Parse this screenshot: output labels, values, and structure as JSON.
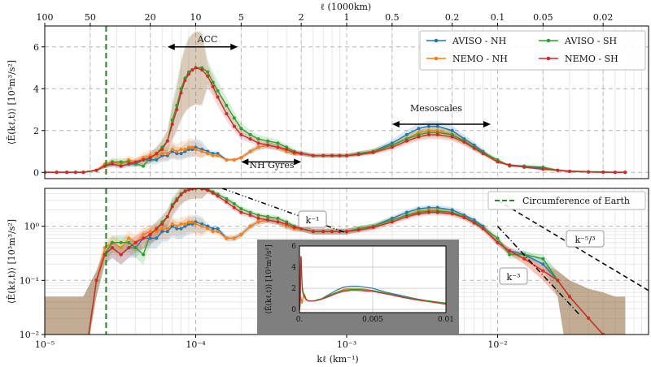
{
  "chart_data": [
    {
      "id": "top",
      "type": "line",
      "xscale": "log",
      "xlim": [
        1e-05,
        0.1
      ],
      "ylim": [
        -0.3,
        7
      ],
      "yticks": [
        0,
        2,
        4,
        6
      ],
      "ylabel": "⟨Ē(kℓ,t)⟩ [10³m³/s²]",
      "top_axis_label": "ℓ (1000km)",
      "top_axis_ticks": [
        {
          "label": "100",
          "k": 1e-05
        },
        {
          "label": "50",
          "k": 2e-05
        },
        {
          "label": "20",
          "k": 5e-05
        },
        {
          "label": "10",
          "k": 0.0001
        },
        {
          "label": "5",
          "k": 0.0002
        },
        {
          "label": "2",
          "k": 0.0005
        },
        {
          "label": "1",
          "k": 0.001
        },
        {
          "label": "0.5",
          "k": 0.002
        },
        {
          "label": "0.2",
          "k": 0.005
        },
        {
          "label": "0.1",
          "k": 0.01
        },
        {
          "label": "0.05",
          "k": 0.02
        },
        {
          "label": "0.02",
          "k": 0.05
        }
      ],
      "grid": true,
      "legend_position": "top-right",
      "legend": [
        "AVISO - NH",
        "NEMO - NH",
        "AVISO - SH",
        "NEMO - SH"
      ],
      "annotations": [
        {
          "text": "ACC",
          "arrow_from": 6.5e-05,
          "arrow_to": 0.00019,
          "y": 6.0
        },
        {
          "text": "NH Gyres",
          "arrow_from": 0.0002,
          "arrow_to": 0.0005,
          "y": 0.5
        },
        {
          "text": "Mesoscales",
          "arrow_from": 0.002,
          "arrow_to": 0.009,
          "y": 2.3
        }
      ],
      "x": [
        1e-05,
        1.2e-05,
        1.4e-05,
        1.6e-05,
        1.8e-05,
        2.2e-05,
        2.5e-05,
        2.8e-05,
        3.2e-05,
        3.6e-05,
        4e-05,
        4.5e-05,
        5e-05,
        5.5e-05,
        6e-05,
        6.5e-05,
        7e-05,
        7.5e-05,
        8e-05,
        8.5e-05,
        9e-05,
        9.5e-05,
        0.0001,
        0.00011,
        0.00012,
        0.00013,
        0.00014,
        0.00016,
        0.00018,
        0.0002,
        0.00023,
        0.00026,
        0.0003,
        0.00035,
        0.0004,
        0.00045,
        0.0005,
        0.0006,
        0.0007,
        0.0008,
        0.0009,
        0.001,
        0.0012,
        0.0015,
        0.002,
        0.0025,
        0.003,
        0.0035,
        0.004,
        0.005,
        0.006,
        0.007,
        0.008,
        0.01,
        0.012,
        0.015,
        0.02,
        0.025,
        0.03,
        0.04,
        0.05,
        0.06,
        0.07
      ],
      "series": [
        {
          "name": "AVISO - NH",
          "color": "#1f77b4",
          "values": [
            0,
            0,
            0,
            0,
            0,
            0.1,
            0.3,
            0.4,
            0.3,
            0.4,
            0.4,
            0.6,
            0.6,
            0.6,
            0.8,
            0.8,
            1.0,
            0.9,
            0.9,
            1.0,
            1.1,
            1.1,
            1.2,
            1.1,
            1.0,
            0.9,
            0.9,
            0.6,
            0.6,
            0.7,
            1.0,
            1.2,
            1.3,
            1.2,
            1.0,
            0.9,
            0.9,
            0.8,
            0.8,
            0.8,
            0.8,
            0.8,
            0.9,
            1.0,
            1.4,
            1.8,
            2.1,
            2.2,
            2.2,
            2.0,
            1.6,
            1.3,
            1.0,
            0.5,
            0.35,
            0.3,
            0.2,
            0.1,
            0.05,
            0.02,
            0.01,
            0.0,
            0.0
          ]
        },
        {
          "name": "NEMO - NH",
          "color": "#ff7f0e",
          "values": [
            0,
            0,
            0,
            0,
            0,
            0.1,
            0.4,
            0.5,
            0.4,
            0.6,
            0.5,
            0.7,
            0.8,
            0.8,
            0.9,
            0.9,
            1.1,
            1.0,
            1.1,
            1.1,
            1.2,
            1.2,
            1.1,
            1.0,
            0.9,
            0.8,
            0.8,
            0.6,
            0.6,
            0.7,
            1.0,
            1.2,
            1.3,
            1.2,
            1.0,
            0.9,
            0.9,
            0.8,
            0.8,
            0.8,
            0.8,
            0.8,
            0.9,
            1.0,
            1.3,
            1.6,
            1.9,
            2.0,
            2.0,
            1.8,
            1.5,
            1.2,
            0.95,
            0.5,
            0.35,
            0.25,
            0.15,
            0.1,
            0.05,
            0.02,
            0.01,
            0.0,
            0.0
          ]
        },
        {
          "name": "AVISO - SH",
          "color": "#2ca02c",
          "values": [
            0,
            0,
            0,
            0,
            0,
            0.1,
            0.3,
            0.5,
            0.5,
            0.5,
            0.4,
            0.3,
            0.7,
            0.9,
            1.2,
            1.5,
            2.5,
            3.2,
            4.0,
            4.5,
            4.8,
            4.9,
            5.0,
            5.0,
            4.8,
            4.3,
            3.9,
            3.2,
            2.6,
            2.1,
            1.8,
            1.6,
            1.5,
            1.4,
            1.2,
            1.0,
            0.9,
            0.8,
            0.8,
            0.8,
            0.8,
            0.8,
            0.9,
            1.0,
            1.3,
            1.6,
            1.8,
            1.9,
            1.9,
            1.8,
            1.5,
            1.2,
            0.95,
            0.6,
            0.3,
            0.3,
            0.25,
            0.1,
            0.05,
            0.02,
            0.01,
            0.0,
            0.0
          ]
        },
        {
          "name": "NEMO - SH",
          "color": "#d62728",
          "values": [
            0,
            0,
            0,
            0,
            0,
            0.1,
            0.3,
            0.4,
            0.3,
            0.4,
            0.5,
            0.6,
            0.7,
            0.9,
            1.1,
            1.5,
            2.3,
            3.0,
            3.8,
            4.4,
            4.7,
            4.9,
            5.0,
            4.9,
            4.6,
            4.1,
            3.6,
            2.8,
            2.2,
            1.8,
            1.6,
            1.4,
            1.3,
            1.2,
            1.1,
            0.95,
            0.9,
            0.8,
            0.8,
            0.8,
            0.8,
            0.8,
            0.85,
            0.95,
            1.2,
            1.5,
            1.7,
            1.8,
            1.8,
            1.7,
            1.45,
            1.15,
            0.9,
            0.5,
            0.35,
            0.25,
            0.15,
            0.1,
            0.05,
            0.02,
            0.01,
            0.0,
            0.0
          ]
        }
      ]
    },
    {
      "id": "bottom",
      "type": "line",
      "xscale": "log",
      "yscale": "log",
      "xlim": [
        1e-05,
        0.1
      ],
      "ylim": [
        0.01,
        5
      ],
      "xticks": [
        {
          "label": "10⁻⁵",
          "k": 1e-05
        },
        {
          "label": "10⁻⁴",
          "k": 0.0001
        },
        {
          "label": "10⁻³",
          "k": 0.001
        },
        {
          "label": "10⁻²",
          "k": 0.01
        }
      ],
      "yticks": [
        {
          "label": "10⁻²",
          "v": 0.01
        },
        {
          "label": "10⁻¹",
          "v": 0.1
        },
        {
          "label": "10⁰",
          "v": 1
        }
      ],
      "xlabel": "kℓ (km⁻¹)",
      "ylabel": "⟨Ē(kℓ,t)⟩ [10³m³/s²]",
      "legend_position": "top-right",
      "legend": [
        "Circumference of Earth"
      ],
      "vline": {
        "k": 2.5e-05,
        "color": "#2ca02c"
      },
      "reference_lines": [
        {
          "label": "k⁻¹",
          "from": [
            0.00015,
            5
          ],
          "to": [
            0.001,
            0.75
          ]
        },
        {
          "label": "k⁻⁵/³",
          "from": [
            0.01,
            3
          ],
          "to": [
            0.1,
            0.065
          ]
        },
        {
          "label": "k⁻³",
          "from": [
            0.01,
            1.0
          ],
          "to": [
            0.035,
            0.023
          ]
        }
      ],
      "inset": {
        "xlim": [
          0,
          0.01
        ],
        "ylim": [
          -0.3,
          6
        ],
        "xticks": [
          "0.",
          "0.005",
          "0.01"
        ],
        "yticks": [
          "0",
          "2",
          "4",
          "6"
        ],
        "ylabel": "⟨Ē(kℓ,t)⟩ [10³m³/s²]"
      }
    }
  ]
}
